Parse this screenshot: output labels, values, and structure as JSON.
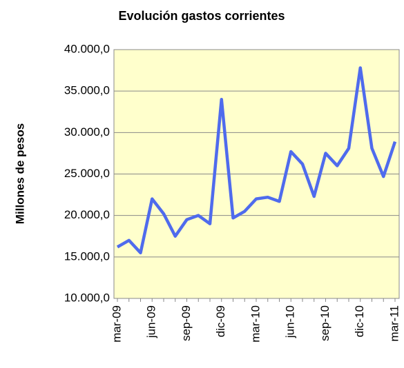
{
  "chart_data": {
    "type": "line",
    "title": "Evolución gastos  corrientes",
    "y_label": "Millones de pesos",
    "categories": [
      "mar-09",
      null,
      null,
      "jun-09",
      null,
      null,
      "sep-09",
      null,
      null,
      "dic-09",
      null,
      null,
      "mar-10",
      null,
      null,
      "jun-10",
      null,
      null,
      "sep-10",
      null,
      null,
      "dic-10",
      null,
      null,
      "mar-11"
    ],
    "series": [
      {
        "name": "Gastos corrientes",
        "color": "#4f6bed",
        "values": [
          16200,
          17000,
          15500,
          22000,
          20200,
          17500,
          19500,
          20000,
          19000,
          34000,
          19700,
          20500,
          22000,
          22200,
          21700,
          27700,
          26200,
          22300,
          27500,
          26000,
          28100,
          37800,
          28100,
          24700,
          28900
        ]
      }
    ],
    "ylim": [
      10000,
      40000
    ],
    "yticks": [
      {
        "value": 10000,
        "label": "10.000,0"
      },
      {
        "value": 15000,
        "label": "15.000,0"
      },
      {
        "value": 20000,
        "label": "20.000,0"
      },
      {
        "value": 25000,
        "label": "25.000,0"
      },
      {
        "value": 30000,
        "label": "30.000,0"
      },
      {
        "value": 35000,
        "label": "35.000,0"
      },
      {
        "value": 40000,
        "label": "40.000,0"
      }
    ],
    "grid": true,
    "plot_background": "#ffffcc"
  }
}
